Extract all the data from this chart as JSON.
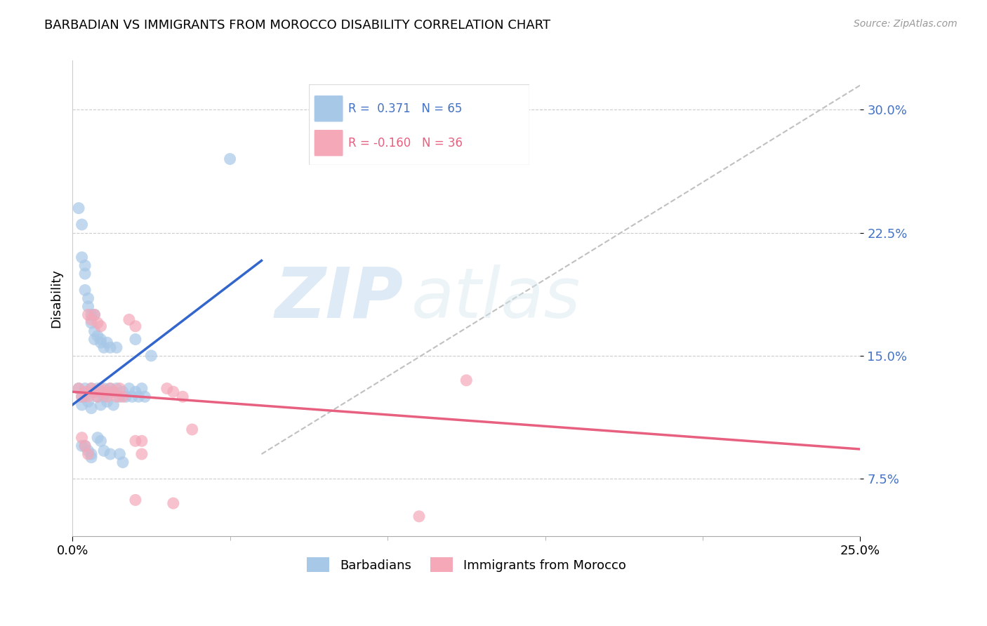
{
  "title": "BARBADIAN VS IMMIGRANTS FROM MOROCCO DISABILITY CORRELATION CHART",
  "source": "Source: ZipAtlas.com",
  "ylabel": "Disability",
  "ytick_labels": [
    "7.5%",
    "15.0%",
    "22.5%",
    "30.0%"
  ],
  "ytick_values": [
    0.075,
    0.15,
    0.225,
    0.3
  ],
  "xlim": [
    0.0,
    0.25
  ],
  "ylim": [
    0.04,
    0.33
  ],
  "watermark_zip": "ZIP",
  "watermark_atlas": "atlas",
  "blue_color": "#a8c8e8",
  "pink_color": "#f4a8b8",
  "blue_line_color": "#3366cc",
  "pink_line_color": "#e86080",
  "blue_dots": [
    [
      0.002,
      0.13
    ],
    [
      0.003,
      0.125
    ],
    [
      0.003,
      0.12
    ],
    [
      0.004,
      0.13
    ],
    [
      0.004,
      0.125
    ],
    [
      0.004,
      0.19
    ],
    [
      0.005,
      0.128
    ],
    [
      0.005,
      0.122
    ],
    [
      0.005,
      0.185
    ],
    [
      0.005,
      0.18
    ],
    [
      0.006,
      0.13
    ],
    [
      0.006,
      0.118
    ],
    [
      0.006,
      0.175
    ],
    [
      0.006,
      0.17
    ],
    [
      0.007,
      0.128
    ],
    [
      0.007,
      0.165
    ],
    [
      0.007,
      0.16
    ],
    [
      0.008,
      0.13
    ],
    [
      0.008,
      0.125
    ],
    [
      0.008,
      0.162
    ],
    [
      0.009,
      0.128
    ],
    [
      0.009,
      0.12
    ],
    [
      0.009,
      0.16
    ],
    [
      0.009,
      0.158
    ],
    [
      0.01,
      0.13
    ],
    [
      0.01,
      0.125
    ],
    [
      0.01,
      0.155
    ],
    [
      0.011,
      0.128
    ],
    [
      0.011,
      0.122
    ],
    [
      0.011,
      0.158
    ],
    [
      0.012,
      0.13
    ],
    [
      0.012,
      0.155
    ],
    [
      0.013,
      0.128
    ],
    [
      0.013,
      0.12
    ],
    [
      0.014,
      0.13
    ],
    [
      0.014,
      0.155
    ],
    [
      0.015,
      0.125
    ],
    [
      0.015,
      0.09
    ],
    [
      0.016,
      0.128
    ],
    [
      0.016,
      0.085
    ],
    [
      0.017,
      0.125
    ],
    [
      0.018,
      0.13
    ],
    [
      0.019,
      0.125
    ],
    [
      0.02,
      0.128
    ],
    [
      0.02,
      0.16
    ],
    [
      0.021,
      0.125
    ],
    [
      0.022,
      0.13
    ],
    [
      0.023,
      0.125
    ],
    [
      0.002,
      0.24
    ],
    [
      0.003,
      0.23
    ],
    [
      0.004,
      0.2
    ],
    [
      0.003,
      0.095
    ],
    [
      0.004,
      0.095
    ],
    [
      0.005,
      0.092
    ],
    [
      0.006,
      0.09
    ],
    [
      0.006,
      0.088
    ],
    [
      0.025,
      0.15
    ],
    [
      0.008,
      0.1
    ],
    [
      0.009,
      0.098
    ],
    [
      0.01,
      0.092
    ],
    [
      0.012,
      0.09
    ],
    [
      0.05,
      0.27
    ],
    [
      0.003,
      0.21
    ],
    [
      0.004,
      0.205
    ],
    [
      0.007,
      0.175
    ]
  ],
  "pink_dots": [
    [
      0.002,
      0.13
    ],
    [
      0.003,
      0.125
    ],
    [
      0.004,
      0.128
    ],
    [
      0.005,
      0.125
    ],
    [
      0.006,
      0.13
    ],
    [
      0.007,
      0.128
    ],
    [
      0.008,
      0.125
    ],
    [
      0.009,
      0.13
    ],
    [
      0.01,
      0.128
    ],
    [
      0.011,
      0.125
    ],
    [
      0.012,
      0.13
    ],
    [
      0.013,
      0.128
    ],
    [
      0.014,
      0.125
    ],
    [
      0.015,
      0.13
    ],
    [
      0.016,
      0.125
    ],
    [
      0.005,
      0.175
    ],
    [
      0.006,
      0.172
    ],
    [
      0.007,
      0.175
    ],
    [
      0.008,
      0.17
    ],
    [
      0.009,
      0.168
    ],
    [
      0.018,
      0.172
    ],
    [
      0.02,
      0.168
    ],
    [
      0.003,
      0.1
    ],
    [
      0.004,
      0.095
    ],
    [
      0.005,
      0.09
    ],
    [
      0.02,
      0.098
    ],
    [
      0.022,
      0.09
    ],
    [
      0.03,
      0.13
    ],
    [
      0.032,
      0.128
    ],
    [
      0.035,
      0.125
    ],
    [
      0.125,
      0.135
    ],
    [
      0.02,
      0.062
    ],
    [
      0.032,
      0.06
    ],
    [
      0.022,
      0.098
    ],
    [
      0.038,
      0.105
    ],
    [
      0.11,
      0.052
    ]
  ],
  "blue_line_x": [
    0.0,
    0.06
  ],
  "blue_line_y": [
    0.12,
    0.208
  ],
  "pink_line_x": [
    0.0,
    0.25
  ],
  "pink_line_y": [
    0.128,
    0.093
  ],
  "dash_line_x": [
    0.06,
    0.25
  ],
  "dash_line_y": [
    0.09,
    0.315
  ]
}
